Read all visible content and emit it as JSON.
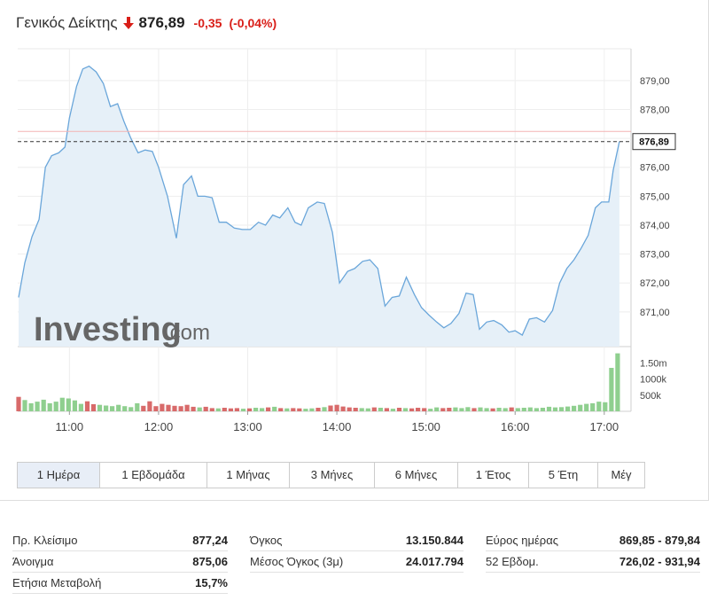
{
  "header": {
    "name": "Γενικός Δείκτης",
    "price": "876,89",
    "change": "-0,35",
    "change_pct": "(-0,04%)",
    "direction_icon": "down-arrow-icon",
    "down_color": "#d91e18"
  },
  "watermark": {
    "brand": "Investing",
    "suffix": ".com"
  },
  "chart_data": {
    "type": "line",
    "area_fill": true,
    "line_color": "#6aa6da",
    "fill_color": "#e6f0f8",
    "y_ticks": [
      "879,00",
      "878,00",
      "877,00",
      "876,00",
      "875,00",
      "874,00",
      "873,00",
      "872,00",
      "871,00"
    ],
    "y_tick_values": [
      879,
      878,
      877,
      876,
      875,
      874,
      873,
      872,
      871
    ],
    "ylim": [
      869.8,
      880.1
    ],
    "x_ticks": [
      "11:00",
      "12:00",
      "13:00",
      "14:00",
      "15:00",
      "16:00",
      "17:00"
    ],
    "x_tick_hours": [
      11,
      12,
      13,
      14,
      15,
      16,
      17
    ],
    "xlim": [
      10.42,
      17.3
    ],
    "current_label": "876,89",
    "current_value": 876.89,
    "prev_close_value": 877.24,
    "series": [
      {
        "values": [
          [
            10.43,
            871.5
          ],
          [
            10.5,
            872.7
          ],
          [
            10.58,
            873.6
          ],
          [
            10.66,
            874.2
          ],
          [
            10.73,
            876.0
          ],
          [
            10.8,
            876.4
          ],
          [
            10.88,
            876.5
          ],
          [
            10.95,
            876.7
          ],
          [
            11.0,
            877.7
          ],
          [
            11.08,
            878.8
          ],
          [
            11.15,
            879.4
          ],
          [
            11.22,
            879.5
          ],
          [
            11.3,
            879.3
          ],
          [
            11.38,
            878.9
          ],
          [
            11.46,
            878.1
          ],
          [
            11.54,
            878.2
          ],
          [
            11.61,
            877.6
          ],
          [
            11.69,
            877.0
          ],
          [
            11.77,
            876.5
          ],
          [
            11.85,
            876.6
          ],
          [
            11.93,
            876.55
          ],
          [
            12.0,
            876.0
          ],
          [
            12.1,
            875.0
          ],
          [
            12.2,
            873.55
          ],
          [
            12.28,
            875.4
          ],
          [
            12.37,
            875.7
          ],
          [
            12.44,
            875.0
          ],
          [
            12.52,
            875.0
          ],
          [
            12.6,
            874.95
          ],
          [
            12.68,
            874.1
          ],
          [
            12.76,
            874.1
          ],
          [
            12.85,
            873.9
          ],
          [
            12.94,
            873.85
          ],
          [
            13.03,
            873.85
          ],
          [
            13.12,
            874.1
          ],
          [
            13.2,
            874.0
          ],
          [
            13.28,
            874.35
          ],
          [
            13.36,
            874.25
          ],
          [
            13.45,
            874.6
          ],
          [
            13.53,
            874.1
          ],
          [
            13.6,
            874.0
          ],
          [
            13.68,
            874.6
          ],
          [
            13.78,
            874.8
          ],
          [
            13.86,
            874.75
          ],
          [
            13.95,
            873.75
          ],
          [
            14.03,
            872.0
          ],
          [
            14.12,
            872.4
          ],
          [
            14.2,
            872.5
          ],
          [
            14.29,
            872.75
          ],
          [
            14.37,
            872.8
          ],
          [
            14.46,
            872.5
          ],
          [
            14.54,
            871.2
          ],
          [
            14.62,
            871.5
          ],
          [
            14.7,
            871.55
          ],
          [
            14.78,
            872.2
          ],
          [
            14.87,
            871.6
          ],
          [
            14.95,
            871.15
          ],
          [
            15.03,
            870.9
          ],
          [
            15.12,
            870.65
          ],
          [
            15.2,
            870.45
          ],
          [
            15.28,
            870.6
          ],
          [
            15.37,
            870.95
          ],
          [
            15.45,
            871.65
          ],
          [
            15.53,
            871.6
          ],
          [
            15.6,
            870.4
          ],
          [
            15.68,
            870.65
          ],
          [
            15.76,
            870.7
          ],
          [
            15.85,
            870.55
          ],
          [
            15.93,
            870.3
          ],
          [
            16.0,
            870.35
          ],
          [
            16.08,
            870.2
          ],
          [
            16.16,
            870.75
          ],
          [
            16.24,
            870.8
          ],
          [
            16.33,
            870.65
          ],
          [
            16.42,
            871.05
          ],
          [
            16.5,
            872.0
          ],
          [
            16.58,
            872.5
          ],
          [
            16.66,
            872.8
          ],
          [
            16.74,
            873.2
          ],
          [
            16.82,
            873.65
          ],
          [
            16.9,
            874.6
          ],
          [
            16.97,
            874.8
          ],
          [
            17.05,
            874.8
          ],
          [
            17.1,
            875.9
          ],
          [
            17.17,
            876.89
          ]
        ]
      }
    ],
    "volume": {
      "ticks": [
        "1.50m",
        "1000k",
        "500k"
      ],
      "tick_values": [
        1500000,
        1000000,
        500000
      ],
      "max": 1900000,
      "up_color": "#8fcf8f",
      "down_color": "#d86a6a",
      "bars": [
        [
          10.43,
          450000,
          "down"
        ],
        [
          10.5,
          350000,
          "up"
        ],
        [
          10.57,
          250000,
          "up"
        ],
        [
          10.64,
          300000,
          "up"
        ],
        [
          10.71,
          360000,
          "up"
        ],
        [
          10.78,
          250000,
          "up"
        ],
        [
          10.85,
          300000,
          "up"
        ],
        [
          10.92,
          420000,
          "up"
        ],
        [
          10.99,
          400000,
          "up"
        ],
        [
          11.06,
          340000,
          "up"
        ],
        [
          11.13,
          230000,
          "up"
        ],
        [
          11.2,
          310000,
          "down"
        ],
        [
          11.27,
          220000,
          "down"
        ],
        [
          11.34,
          200000,
          "up"
        ],
        [
          11.41,
          180000,
          "up"
        ],
        [
          11.48,
          160000,
          "up"
        ],
        [
          11.55,
          200000,
          "up"
        ],
        [
          11.62,
          160000,
          "up"
        ],
        [
          11.69,
          130000,
          "up"
        ],
        [
          11.76,
          250000,
          "up"
        ],
        [
          11.83,
          170000,
          "down"
        ],
        [
          11.9,
          310000,
          "down"
        ],
        [
          11.97,
          160000,
          "down"
        ],
        [
          12.04,
          230000,
          "down"
        ],
        [
          12.11,
          200000,
          "down"
        ],
        [
          12.18,
          170000,
          "down"
        ],
        [
          12.25,
          160000,
          "down"
        ],
        [
          12.32,
          200000,
          "down"
        ],
        [
          12.39,
          140000,
          "down"
        ],
        [
          12.46,
          120000,
          "up"
        ],
        [
          12.53,
          140000,
          "down"
        ],
        [
          12.6,
          100000,
          "down"
        ],
        [
          12.67,
          90000,
          "up"
        ],
        [
          12.74,
          110000,
          "down"
        ],
        [
          12.81,
          90000,
          "down"
        ],
        [
          12.88,
          100000,
          "down"
        ],
        [
          12.95,
          80000,
          "up"
        ],
        [
          13.02,
          90000,
          "down"
        ],
        [
          13.09,
          110000,
          "up"
        ],
        [
          13.16,
          100000,
          "up"
        ],
        [
          13.23,
          120000,
          "down"
        ],
        [
          13.3,
          140000,
          "up"
        ],
        [
          13.37,
          100000,
          "down"
        ],
        [
          13.44,
          90000,
          "up"
        ],
        [
          13.51,
          100000,
          "down"
        ],
        [
          13.58,
          90000,
          "down"
        ],
        [
          13.65,
          80000,
          "up"
        ],
        [
          13.72,
          90000,
          "up"
        ],
        [
          13.79,
          110000,
          "down"
        ],
        [
          13.86,
          130000,
          "up"
        ],
        [
          13.93,
          180000,
          "down"
        ],
        [
          14.0,
          200000,
          "down"
        ],
        [
          14.07,
          150000,
          "down"
        ],
        [
          14.14,
          120000,
          "down"
        ],
        [
          14.21,
          110000,
          "down"
        ],
        [
          14.28,
          100000,
          "up"
        ],
        [
          14.35,
          90000,
          "up"
        ],
        [
          14.42,
          120000,
          "down"
        ],
        [
          14.49,
          110000,
          "up"
        ],
        [
          14.56,
          100000,
          "down"
        ],
        [
          14.63,
          80000,
          "up"
        ],
        [
          14.7,
          110000,
          "down"
        ],
        [
          14.77,
          100000,
          "up"
        ],
        [
          14.84,
          90000,
          "down"
        ],
        [
          14.91,
          110000,
          "down"
        ],
        [
          14.98,
          100000,
          "down"
        ],
        [
          15.05,
          80000,
          "up"
        ],
        [
          15.12,
          120000,
          "up"
        ],
        [
          15.19,
          100000,
          "down"
        ],
        [
          15.26,
          110000,
          "down"
        ],
        [
          15.33,
          120000,
          "up"
        ],
        [
          15.4,
          100000,
          "up"
        ],
        [
          15.47,
          130000,
          "up"
        ],
        [
          15.54,
          100000,
          "down"
        ],
        [
          15.61,
          120000,
          "up"
        ],
        [
          15.68,
          100000,
          "up"
        ],
        [
          15.75,
          90000,
          "down"
        ],
        [
          15.82,
          110000,
          "up"
        ],
        [
          15.89,
          100000,
          "up"
        ],
        [
          15.96,
          120000,
          "down"
        ],
        [
          16.03,
          100000,
          "up"
        ],
        [
          16.1,
          110000,
          "up"
        ],
        [
          16.17,
          120000,
          "up"
        ],
        [
          16.24,
          100000,
          "up"
        ],
        [
          16.31,
          110000,
          "up"
        ],
        [
          16.38,
          140000,
          "up"
        ],
        [
          16.45,
          120000,
          "up"
        ],
        [
          16.52,
          130000,
          "up"
        ],
        [
          16.59,
          150000,
          "up"
        ],
        [
          16.66,
          170000,
          "up"
        ],
        [
          16.73,
          200000,
          "up"
        ],
        [
          16.8,
          230000,
          "up"
        ],
        [
          16.87,
          250000,
          "up"
        ],
        [
          16.94,
          300000,
          "up"
        ],
        [
          17.01,
          280000,
          "up"
        ],
        [
          17.08,
          1350000,
          "up"
        ],
        [
          17.15,
          1800000,
          "up"
        ]
      ]
    }
  },
  "tabs": [
    {
      "label": "1 Ημέρα",
      "active": true
    },
    {
      "label": "1 Εβδομάδα"
    },
    {
      "label": "1 Μήνας"
    },
    {
      "label": "3 Μήνες"
    },
    {
      "label": "6 Μήνες"
    },
    {
      "label": "1 Έτος"
    },
    {
      "label": "5 Έτη"
    },
    {
      "label": "Μέγ"
    }
  ],
  "stats": {
    "col1": [
      {
        "label": "Πρ. Κλείσιμο",
        "value": "877,24"
      },
      {
        "label": "Άνοιγμα",
        "value": "875,06"
      },
      {
        "label": "Ετήσια Μεταβολή",
        "value": "15,7%"
      }
    ],
    "col2": [
      {
        "label": "Όγκος",
        "value": "13.150.844"
      },
      {
        "label": "Μέσος Όγκος (3μ)",
        "value": "24.017.794"
      }
    ],
    "col3": [
      {
        "label": "Εύρος ημέρας",
        "value": "869,85 - 879,84"
      },
      {
        "label": "52 Εβδομ.",
        "value": "726,02 - 931,94"
      }
    ]
  }
}
